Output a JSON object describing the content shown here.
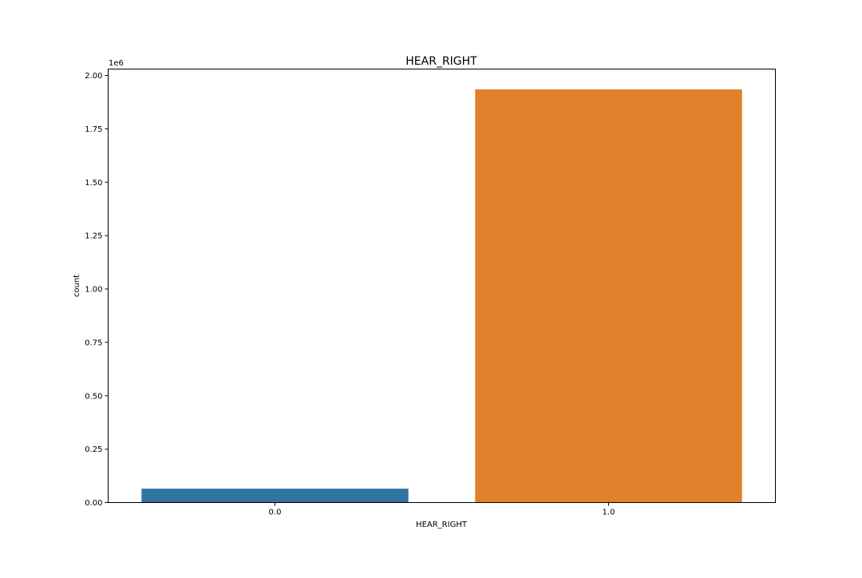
{
  "chart_data": {
    "type": "bar",
    "title": "HEAR_RIGHT",
    "xlabel": "HEAR_RIGHT",
    "ylabel": "count",
    "offset_text": "1e6",
    "categories": [
      "0.0",
      "1.0"
    ],
    "values": [
      65000,
      1935000
    ],
    "colors": [
      "#3274a1",
      "#e1812c"
    ],
    "ylim": [
      0,
      2030000
    ],
    "yticks": [
      0,
      250000,
      500000,
      750000,
      1000000,
      1250000,
      1500000,
      1750000,
      2000000
    ],
    "ytick_labels": [
      "0.00",
      "0.25",
      "0.50",
      "0.75",
      "1.00",
      "1.25",
      "1.50",
      "1.75",
      "2.00"
    ],
    "grid": false,
    "legend": "none"
  }
}
